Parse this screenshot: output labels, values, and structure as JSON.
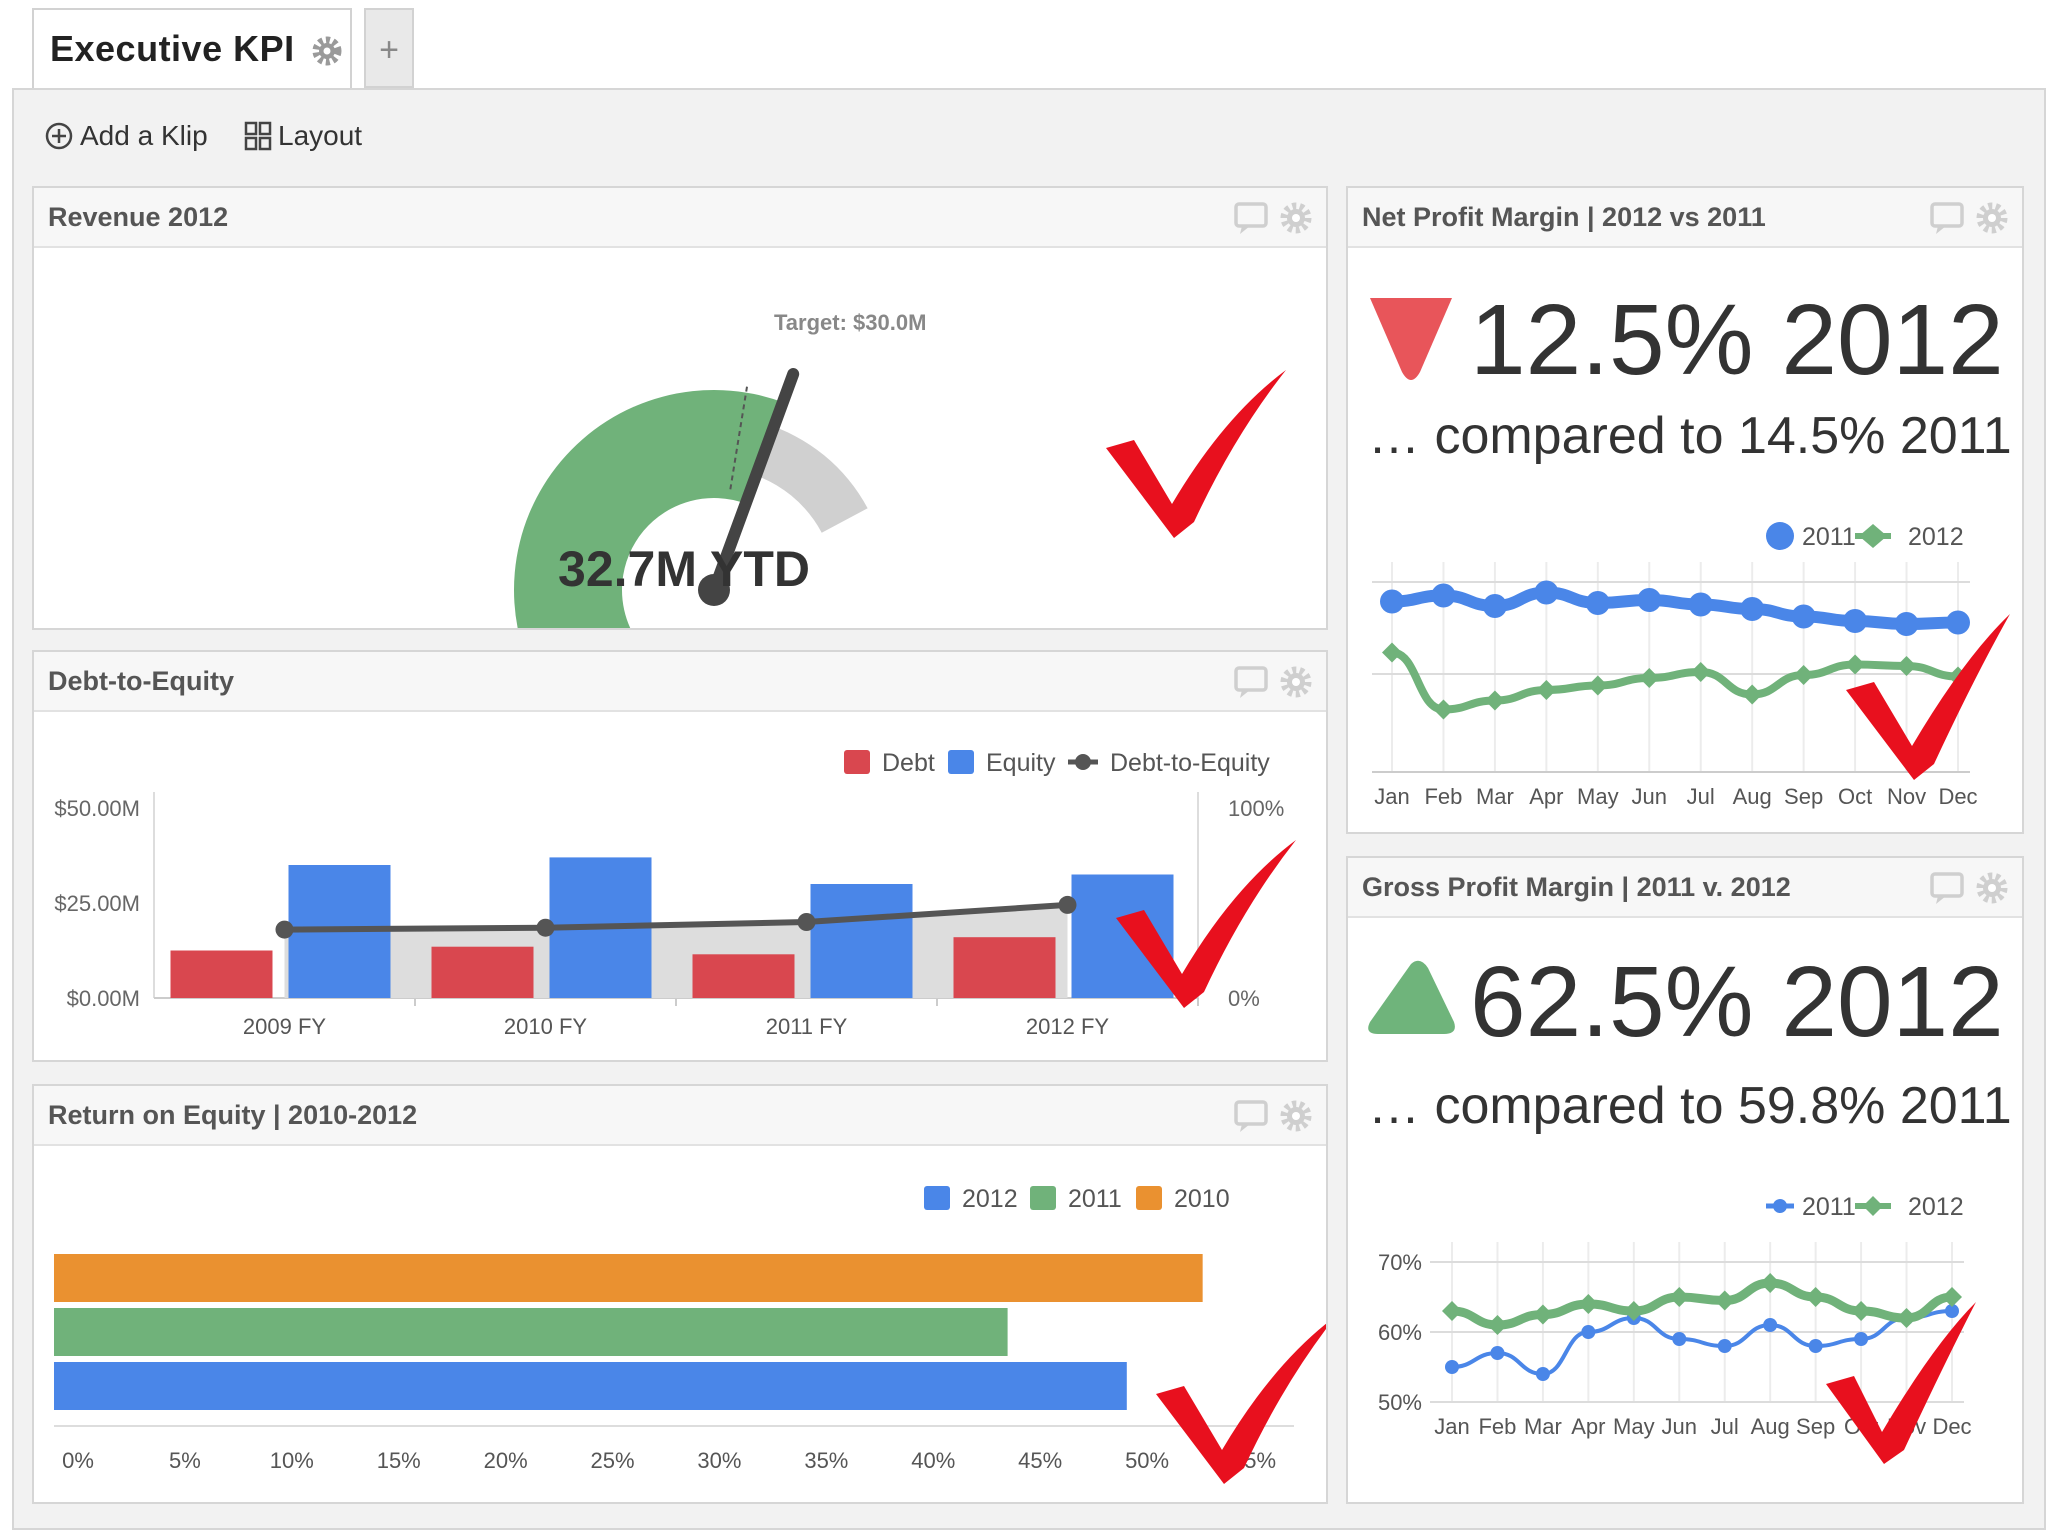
{
  "tab": {
    "title": "Executive KPI",
    "add": "+"
  },
  "toolbar": {
    "add_klip": "Add a Klip",
    "layout": "Layout"
  },
  "colors": {
    "green": "#70b27a",
    "blue": "#4a86e8",
    "red": "#d9474f",
    "orange": "#ea9130",
    "dark": "#444444",
    "gray": "#cccccc",
    "check": "#e8101e"
  },
  "revenue": {
    "title": "Revenue 2012",
    "target_label": "Target: $30.0M",
    "value_label": "32.7M YTD",
    "actual_fraction": 0.77,
    "target_fraction": 0.71
  },
  "debt_equity": {
    "title": "Debt-to-Equity",
    "chart_data": {
      "type": "bar",
      "categories": [
        "2009 FY",
        "2010 FY",
        "2011 FY",
        "2012 FY"
      ],
      "series": [
        {
          "name": "Debt",
          "values": [
            12.5,
            13.5,
            11.5,
            16.0
          ]
        },
        {
          "name": "Equity",
          "values": [
            35.0,
            37.0,
            30.0,
            32.5
          ]
        },
        {
          "name": "Debt-to-Equity",
          "values": [
            36,
            37,
            40,
            49
          ]
        }
      ],
      "y_ticks": [
        "$50.00M",
        "$25.00M",
        "$0.00M"
      ],
      "y2_ticks": [
        "100%",
        "0%"
      ],
      "ylim": [
        0,
        50
      ],
      "y2lim": [
        0,
        100
      ]
    }
  },
  "roe": {
    "title": "Return on Equity | 2010-2012",
    "chart_data": {
      "type": "bar",
      "orientation": "horizontal",
      "series": [
        {
          "name": "2012",
          "values": [
            49.5
          ]
        },
        {
          "name": "2011",
          "values": [
            44.0
          ]
        },
        {
          "name": "2010",
          "values": [
            53.0
          ]
        }
      ],
      "x_ticks": [
        "0%",
        "5%",
        "10%",
        "15%",
        "20%",
        "25%",
        "30%",
        "35%",
        "40%",
        "45%",
        "50%",
        "55%"
      ],
      "xlim": [
        0,
        55
      ]
    }
  },
  "npm": {
    "title": "Net Profit Margin | 2012 vs 2011",
    "headline": "12.5% 2012",
    "compare": "… compared to 14.5% 2011",
    "direction": "down",
    "chart_data": {
      "type": "line",
      "x": [
        "Jan",
        "Feb",
        "Mar",
        "Apr",
        "May",
        "Jun",
        "Jul",
        "Aug",
        "Sep",
        "Oct",
        "Nov",
        "Dec"
      ],
      "series": [
        {
          "name": "2011",
          "values": [
            14.7,
            15.1,
            14.4,
            15.3,
            14.6,
            14.8,
            14.5,
            14.2,
            13.7,
            13.4,
            13.2,
            13.3
          ]
        },
        {
          "name": "2012",
          "values": [
            11.3,
            7.5,
            8.1,
            8.8,
            9.1,
            9.6,
            10.0,
            8.5,
            9.8,
            10.5,
            10.4,
            9.7
          ]
        }
      ]
    }
  },
  "gpm": {
    "title": "Gross Profit Margin | 2011 v. 2012",
    "headline": "62.5% 2012",
    "compare": "… compared to 59.8% 2011",
    "direction": "up",
    "chart_data": {
      "type": "line",
      "x": [
        "Jan",
        "Feb",
        "Mar",
        "Apr",
        "May",
        "Jun",
        "Jul",
        "Aug",
        "Sep",
        "Oct",
        "Nov",
        "Dec"
      ],
      "y_ticks": [
        "70%",
        "60%",
        "50%"
      ],
      "ylim": [
        50,
        70
      ],
      "series": [
        {
          "name": "2011",
          "values": [
            55,
            57,
            54,
            60,
            62,
            59,
            58,
            61,
            58,
            59,
            62,
            63
          ]
        },
        {
          "name": "2012",
          "values": [
            63,
            61,
            62.5,
            64,
            63,
            65,
            64.5,
            67,
            65,
            63,
            62,
            65
          ]
        }
      ]
    }
  }
}
